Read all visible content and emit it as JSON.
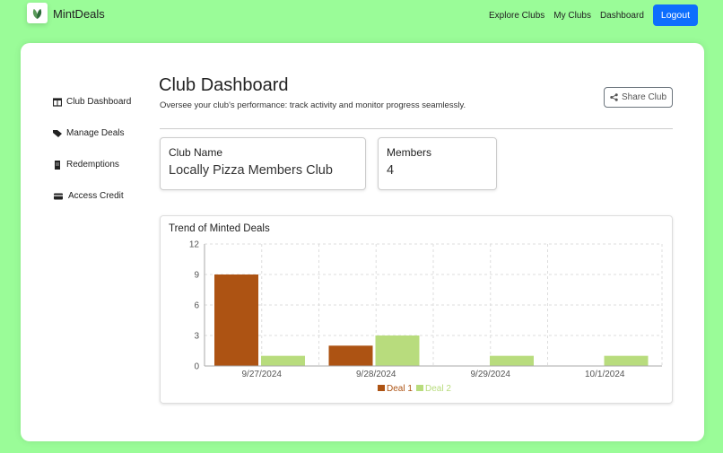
{
  "header": {
    "brand": "MintDeals",
    "nav": [
      "Explore Clubs",
      "My Clubs",
      "Dashboard"
    ],
    "logout": "Logout"
  },
  "sidebar": {
    "items": [
      {
        "label": "Club Dashboard",
        "icon": "columns-icon"
      },
      {
        "label": "Manage Deals",
        "icon": "tags-icon"
      },
      {
        "label": "Redemptions",
        "icon": "receipt-icon"
      },
      {
        "label": "Access Credit",
        "icon": "credit-card-icon"
      }
    ]
  },
  "main": {
    "title": "Club Dashboard",
    "subtitle": "Oversee your club's performance: track activity and monitor progress seamlessly.",
    "share": "Share Club",
    "club_name_label": "Club Name",
    "club_name": "Locally Pizza Members Club",
    "members_label": "Members",
    "members": "4"
  },
  "chart_data": {
    "type": "bar",
    "title": "Trend of Minted Deals",
    "categories": [
      "9/27/2024",
      "9/28/2024",
      "9/29/2024",
      "10/1/2024"
    ],
    "series": [
      {
        "name": "Deal 1",
        "values": [
          9,
          2,
          0,
          0
        ],
        "color": "#ad5313"
      },
      {
        "name": "Deal 2",
        "values": [
          1,
          3,
          1,
          1
        ],
        "color": "#b8dc7d"
      }
    ],
    "ylim": [
      0,
      12
    ],
    "yticks": [
      0,
      3,
      6,
      9,
      12
    ],
    "grid": true,
    "legend": "bottom"
  },
  "colors": {
    "background": "#9afc98",
    "accent": "#0d6efd"
  }
}
